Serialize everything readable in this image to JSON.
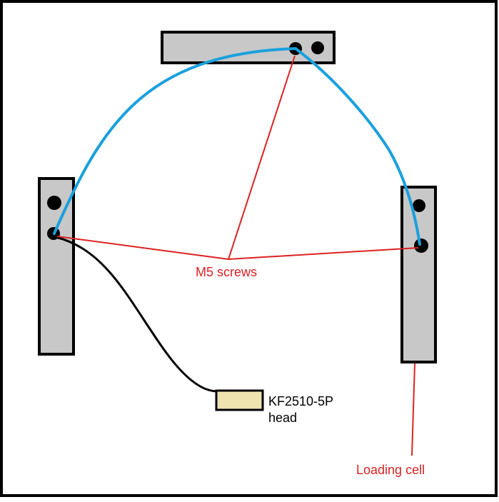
{
  "labels": {
    "screws": "M5 screws",
    "connector_line1": "KF2510-5P",
    "connector_line2": "head",
    "load_cell": "Loading cell"
  },
  "colors": {
    "frame": "#000000",
    "bar_fill": "#c8c8c8",
    "hole": "#000000",
    "wire_blue": "#1aa0dc",
    "wire_black": "#000000",
    "annotation_red": "#dd2222",
    "connector_fill": "#efe4b0"
  }
}
